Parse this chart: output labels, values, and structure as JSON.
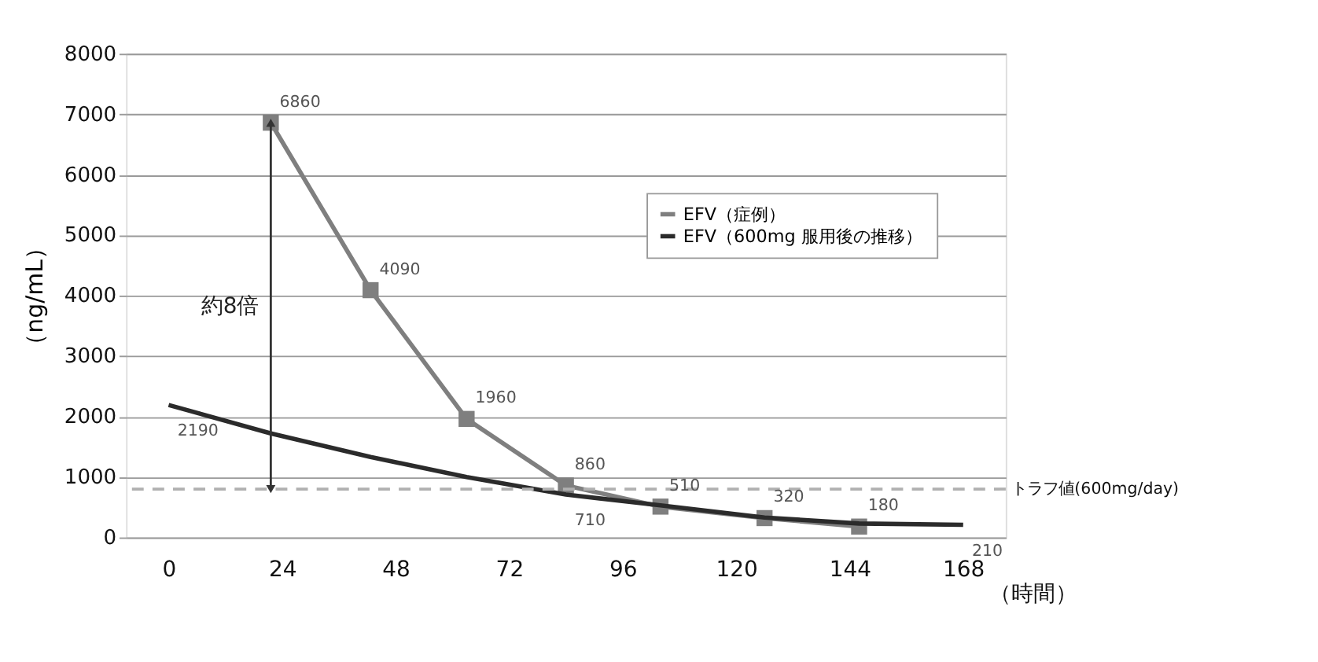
{
  "chart_data": {
    "type": "line",
    "xlabel": "（時間）",
    "ylabel": "（ng/mL）",
    "xlim": [
      -9,
      177
    ],
    "xticks": [
      0,
      24,
      48,
      72,
      96,
      120,
      144,
      168
    ],
    "ylim": [
      0,
      8000
    ],
    "yticks": [
      0,
      1000,
      2000,
      3000,
      4000,
      5000,
      6000,
      7000,
      8000
    ],
    "grid": "y",
    "legend": "top right",
    "line_style": "solid",
    "series": [
      {
        "name": "EFV（症例）",
        "color": "#7f7f7f",
        "marker": "square",
        "x": [
          21.6,
          42.7,
          63,
          84,
          104,
          126,
          146
        ],
        "values": [
          6860,
          4090,
          1960,
          860,
          510,
          320,
          180
        ],
        "value_labels": [
          "6860",
          "4090",
          "1960",
          "860",
          "510",
          "320",
          "180"
        ]
      },
      {
        "name": "EFV（600mg 服用後の推移）",
        "color": "#2b2b2b",
        "marker": "none",
        "x": [
          0,
          21.6,
          42.7,
          63,
          84,
          104,
          126,
          146,
          168
        ],
        "values": [
          2190,
          1720,
          1330,
          1000,
          710,
          530,
          330,
          230,
          210
        ],
        "value_labels": [
          "2190",
          null,
          null,
          null,
          "710",
          null,
          null,
          null,
          "210"
        ]
      }
    ],
    "ref_lines": [
      {
        "axis": "y",
        "value": 800,
        "label": "トラフ値(600mg/day)",
        "color": "#b0b0b0",
        "line_style": "dashed"
      }
    ],
    "annotations": [
      "約8倍"
    ]
  }
}
